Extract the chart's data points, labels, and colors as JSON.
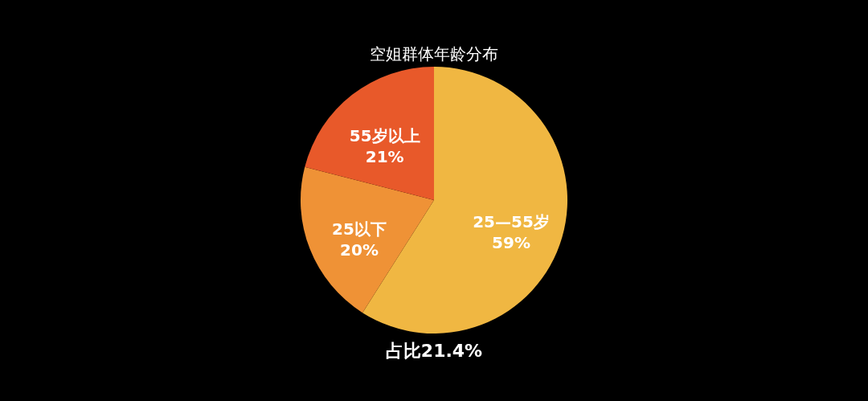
{
  "chart_data": {
    "type": "pie",
    "title": "空姐群体年龄分布",
    "categories": [
      "25—55岁",
      "25以下",
      "55岁以上"
    ],
    "values": [
      59,
      20,
      21
    ],
    "value_labels": [
      "59%",
      "20%",
      "21%"
    ],
    "colors": [
      "#f0b742",
      "#ef9236",
      "#e8592a"
    ],
    "annotations": [
      "占比21.4%"
    ]
  }
}
